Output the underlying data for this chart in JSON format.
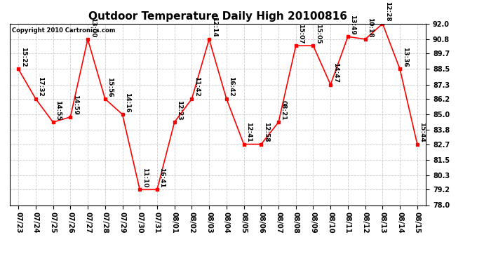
{
  "title": "Outdoor Temperature Daily High 20100816",
  "copyright": "Copyright 2010 Cartronics.com",
  "dates": [
    "07/23",
    "07/24",
    "07/25",
    "07/26",
    "07/27",
    "07/28",
    "07/29",
    "07/30",
    "07/31",
    "08/01",
    "08/02",
    "08/03",
    "08/04",
    "08/05",
    "08/06",
    "08/07",
    "08/08",
    "08/09",
    "08/10",
    "08/11",
    "08/12",
    "08/13",
    "08/14",
    "08/15"
  ],
  "temps": [
    88.5,
    86.2,
    84.4,
    84.8,
    90.8,
    86.2,
    85.0,
    79.2,
    79.2,
    84.4,
    86.2,
    90.8,
    86.2,
    82.7,
    82.7,
    84.4,
    90.3,
    90.3,
    87.3,
    91.0,
    90.8,
    92.0,
    88.5,
    82.7
  ],
  "times": [
    "15:22",
    "17:32",
    "14:55",
    "14:59",
    "13:00",
    "15:56",
    "14:16",
    "11:10",
    "16:41",
    "12:23",
    "11:42",
    "12:14",
    "16:42",
    "12:41",
    "12:58",
    "08:21",
    "15:07",
    "15:05",
    "14:47",
    "13:49",
    "10:18",
    "12:28",
    "13:36",
    "15:44"
  ],
  "ylim": [
    78.0,
    92.0
  ],
  "yticks": [
    78.0,
    79.2,
    80.3,
    81.5,
    82.7,
    83.8,
    85.0,
    86.2,
    87.3,
    88.5,
    89.7,
    90.8,
    92.0
  ],
  "line_color": "red",
  "marker_color": "red",
  "bg_color": "white",
  "grid_color": "#cccccc",
  "title_fontsize": 11,
  "tick_fontsize": 7,
  "label_fontsize": 6.5
}
